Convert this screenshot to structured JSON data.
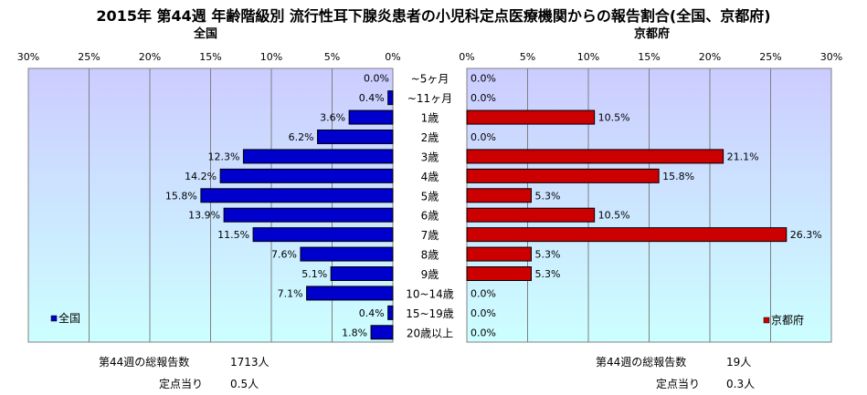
{
  "title": "2015年 第44週 年齢階級別 流行性耳下腺炎患者の小児科定点医療機関からの報告割合(全国、京都府)",
  "chart_data": {
    "type": "bar",
    "categories": [
      "~5ヶ月",
      "~11ヶ月",
      "1歳",
      "2歳",
      "3歳",
      "4歳",
      "5歳",
      "6歳",
      "7歳",
      "8歳",
      "9歳",
      "10~14歳",
      "15~19歳",
      "20歳以上"
    ],
    "xlim": [
      0,
      30
    ],
    "xticks": [
      "0%",
      "5%",
      "10%",
      "15%",
      "20%",
      "25%",
      "30%"
    ],
    "series": [
      {
        "name": "全国",
        "panel_title": "全国",
        "color": "#0000cc",
        "values": [
          0.0,
          0.4,
          3.6,
          6.2,
          12.3,
          14.2,
          15.8,
          13.9,
          11.5,
          7.6,
          5.1,
          7.1,
          0.4,
          1.8
        ],
        "labels": [
          "0.0%",
          "0.4%",
          "3.6%",
          "6.2%",
          "12.3%",
          "14.2%",
          "15.8%",
          "13.9%",
          "11.5%",
          "7.6%",
          "5.1%",
          "7.1%",
          "0.4%",
          "1.8%"
        ]
      },
      {
        "name": "京都府",
        "panel_title": "京都府",
        "color": "#cc0000",
        "values": [
          0.0,
          0.0,
          10.5,
          0.0,
          21.1,
          15.8,
          5.3,
          10.5,
          26.3,
          5.3,
          5.3,
          0.0,
          0.0,
          0.0
        ],
        "labels": [
          "0.0%",
          "0.0%",
          "10.5%",
          "0.0%",
          "21.1%",
          "15.8%",
          "5.3%",
          "10.5%",
          "26.3%",
          "5.3%",
          "5.3%",
          "0.0%",
          "0.0%",
          "0.0%"
        ]
      }
    ]
  },
  "stats": {
    "national": {
      "total_label": "第44週の総報告数",
      "total_value": "1713人",
      "per_label": "定点当り",
      "per_value": "0.5人"
    },
    "kyoto": {
      "total_label": "第44週の総報告数",
      "total_value": "19人",
      "per_label": "定点当り",
      "per_value": "0.3人"
    }
  }
}
